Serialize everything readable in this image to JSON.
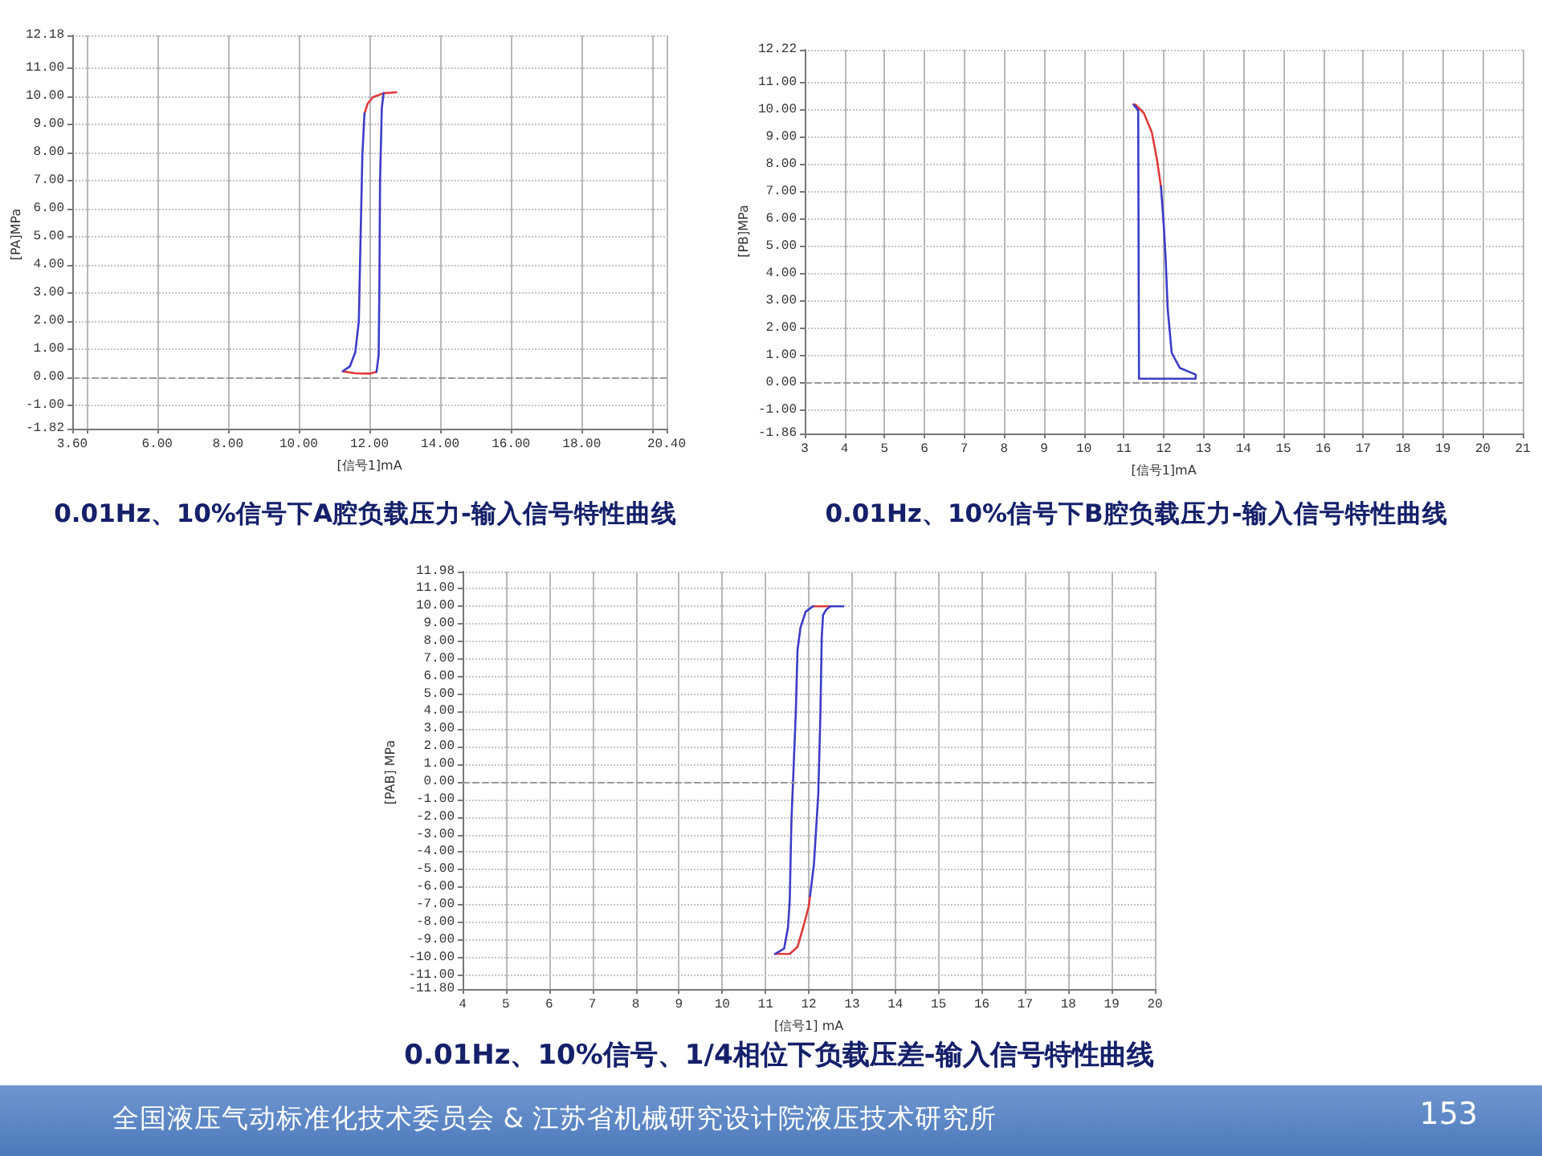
{
  "chart_data": [
    {
      "type": "line",
      "title": "0.01Hz、10%信号下A腔负载压力-输入信号特性曲线",
      "xlabel": "[信号1]mA",
      "ylabel": "[PA]MPa",
      "xlim": [
        3.6,
        20.4
      ],
      "ylim": [
        -1.82,
        12.18
      ],
      "xticks": [
        {
          "value": 3.6,
          "label": "3.60"
        },
        {
          "value": 4,
          "label": null
        },
        {
          "value": 6,
          "label": "6.00"
        },
        {
          "value": 8,
          "label": "8.00"
        },
        {
          "value": 10,
          "label": "10.00"
        },
        {
          "value": 12,
          "label": "12.00"
        },
        {
          "value": 14,
          "label": "14.00"
        },
        {
          "value": 16,
          "label": "16.00"
        },
        {
          "value": 18,
          "label": "18.00"
        },
        {
          "value": 20,
          "label": null
        },
        {
          "value": 20.4,
          "label": "20.40"
        }
      ],
      "yticks": [
        {
          "value": -1.82,
          "label": "-1.82"
        },
        {
          "value": -1,
          "label": "-1.00"
        },
        {
          "value": 0,
          "label": "0.00"
        },
        {
          "value": 1,
          "label": "1.00"
        },
        {
          "value": 2,
          "label": "2.00"
        },
        {
          "value": 3,
          "label": "3.00"
        },
        {
          "value": 4,
          "label": "4.00"
        },
        {
          "value": 5,
          "label": "5.00"
        },
        {
          "value": 6,
          "label": "6.00"
        },
        {
          "value": 7,
          "label": "7.00"
        },
        {
          "value": 8,
          "label": "8.00"
        },
        {
          "value": 9,
          "label": "9.00"
        },
        {
          "value": 10,
          "label": "10.00"
        },
        {
          "value": 11,
          "label": "11.00"
        },
        {
          "value": 12.18,
          "label": "12.18"
        }
      ],
      "grid": true,
      "ref_lines": [
        {
          "axis": "y",
          "value": 0,
          "label": null,
          "color": "#9a9a9a",
          "line_style": "dashed"
        }
      ],
      "series": [
        {
          "color": "#e03a3a",
          "x": [
            11.25,
            11.6,
            12.0,
            12.2
          ],
          "values": [
            0.22,
            0.15,
            0.14,
            0.2
          ]
        },
        {
          "color": "#e03a3a",
          "x": [
            11.86,
            11.95,
            12.1,
            12.4,
            12.76
          ],
          "values": [
            9.4,
            9.75,
            9.98,
            10.12,
            10.15
          ]
        },
        {
          "color": "#3c3cc8",
          "x": [
            11.25,
            11.45,
            11.6,
            11.7,
            11.75,
            11.8,
            11.86
          ],
          "values": [
            0.23,
            0.4,
            0.9,
            2.0,
            5.0,
            7.9,
            9.4
          ]
        },
        {
          "color": "#3c3cc8",
          "x": [
            12.4,
            12.35,
            12.3,
            12.28,
            12.26,
            12.2
          ],
          "values": [
            10.12,
            9.6,
            7.0,
            3.0,
            0.8,
            0.2
          ]
        }
      ]
    },
    {
      "type": "line",
      "title": "0.01Hz、10%信号下B腔负载压力-输入信号特性曲线",
      "xlabel": "[信号1]mA",
      "ylabel": "[PB]MPa",
      "xlim": [
        3,
        21
      ],
      "ylim": [
        -1.86,
        12.22
      ],
      "xticks": [
        3,
        4,
        5,
        6,
        7,
        8,
        9,
        10,
        11,
        12,
        13,
        14,
        15,
        16,
        17,
        18,
        19,
        20,
        21
      ],
      "yticks": [
        {
          "value": -1.86,
          "label": "-1.86"
        },
        {
          "value": -1,
          "label": "-1.00"
        },
        {
          "value": 0,
          "label": "0.00"
        },
        {
          "value": 1,
          "label": "1.00"
        },
        {
          "value": 2,
          "label": "2.00"
        },
        {
          "value": 3,
          "label": "3.00"
        },
        {
          "value": 4,
          "label": "4.00"
        },
        {
          "value": 5,
          "label": "5.00"
        },
        {
          "value": 6,
          "label": "6.00"
        },
        {
          "value": 7,
          "label": "7.00"
        },
        {
          "value": 8,
          "label": "8.00"
        },
        {
          "value": 9,
          "label": "9.00"
        },
        {
          "value": 10,
          "label": "10.00"
        },
        {
          "value": 11,
          "label": "11.00"
        },
        {
          "value": 12.22,
          "label": "12.22"
        }
      ],
      "grid": true,
      "ref_lines": [
        {
          "axis": "y",
          "value": 0,
          "label": null,
          "color": "#9a9a9a",
          "line_style": "dashed"
        }
      ],
      "series": [
        {
          "color": "#e03a3a",
          "x": [
            11.25,
            11.3,
            11.5,
            11.7,
            11.83,
            11.93
          ],
          "values": [
            10.22,
            10.2,
            9.9,
            9.2,
            8.2,
            7.2
          ]
        },
        {
          "color": "#3c3cc8",
          "x": [
            11.25,
            11.36,
            11.37,
            11.38,
            12.0,
            12.8,
            12.8,
            12.4,
            12.2,
            12.1,
            12.05,
            12.0,
            11.93
          ],
          "values": [
            10.2,
            10.0,
            5.0,
            0.15,
            0.15,
            0.15,
            0.3,
            0.55,
            1.1,
            2.7,
            4.5,
            5.8,
            7.2
          ]
        }
      ]
    },
    {
      "type": "line",
      "title": "0.01Hz、10%信号、1/4相位下负载压差-输入信号特性曲线",
      "xlabel": "[信号1] mA",
      "ylabel": "[PAB] MPa",
      "xlim": [
        4,
        20
      ],
      "ylim": [
        -11.8,
        11.98
      ],
      "xticks": [
        4,
        5,
        6,
        7,
        8,
        9,
        10,
        11,
        12,
        13,
        14,
        15,
        16,
        17,
        18,
        19,
        20
      ],
      "yticks": [
        {
          "value": -11.8,
          "label": "-11.80"
        },
        {
          "value": -11,
          "label": "-11.00"
        },
        {
          "value": -10,
          "label": "-10.00"
        },
        {
          "value": -9,
          "label": "-9.00"
        },
        {
          "value": -8,
          "label": "-8.00"
        },
        {
          "value": -7,
          "label": "-7.00"
        },
        {
          "value": -6,
          "label": "-6.00"
        },
        {
          "value": -5,
          "label": "-5.00"
        },
        {
          "value": -4,
          "label": "-4.00"
        },
        {
          "value": -3,
          "label": "-3.00"
        },
        {
          "value": -2,
          "label": "-2.00"
        },
        {
          "value": -1,
          "label": "-1.00"
        },
        {
          "value": 0,
          "label": "0.00"
        },
        {
          "value": 1,
          "label": "1.00"
        },
        {
          "value": 2,
          "label": "2.00"
        },
        {
          "value": 3,
          "label": "3.00"
        },
        {
          "value": 4,
          "label": "4.00"
        },
        {
          "value": 5,
          "label": "5.00"
        },
        {
          "value": 6,
          "label": "6.00"
        },
        {
          "value": 7,
          "label": "7.00"
        },
        {
          "value": 8,
          "label": "8.00"
        },
        {
          "value": 9,
          "label": "9.00"
        },
        {
          "value": 10,
          "label": "10.00"
        },
        {
          "value": 11,
          "label": "11.00"
        },
        {
          "value": 11.98,
          "label": "11.98"
        }
      ],
      "grid": true,
      "ref_lines": [
        {
          "axis": "y",
          "value": 0,
          "label": null,
          "color": "#9a9a9a",
          "line_style": "dashed"
        }
      ],
      "annotations": [
        "全国液压气动标准化技术委员会 & 江苏省机械研究设计院液压技术研究所",
        "153"
      ],
      "series": [
        {
          "color": "#e03a3a",
          "x": [
            12.03,
            12.0,
            11.87,
            11.74,
            11.56,
            11.25
          ],
          "values": [
            -6.5,
            -7.1,
            -8.3,
            -9.4,
            -9.8,
            -9.8
          ]
        },
        {
          "color": "#e03a3a",
          "x": [
            12.1,
            12.3,
            12.5
          ],
          "values": [
            10.0,
            10.0,
            10.0
          ]
        },
        {
          "color": "#3c3cc8",
          "x": [
            11.22,
            11.43,
            11.52,
            11.56,
            11.6,
            11.65,
            11.7,
            11.74,
            11.81,
            11.93,
            12.1
          ],
          "values": [
            -9.8,
            -9.5,
            -8.3,
            -6.8,
            -2.2,
            0.8,
            3.9,
            7.5,
            8.8,
            9.7,
            10.0
          ]
        },
        {
          "color": "#3c3cc8",
          "x": [
            12.8,
            12.5,
            12.4,
            12.33,
            12.3,
            12.27,
            12.22,
            12.12,
            12.03
          ],
          "values": [
            10.0,
            10.0,
            9.8,
            9.5,
            8.2,
            3.9,
            -0.7,
            -4.7,
            -6.5
          ]
        }
      ]
    }
  ]
}
